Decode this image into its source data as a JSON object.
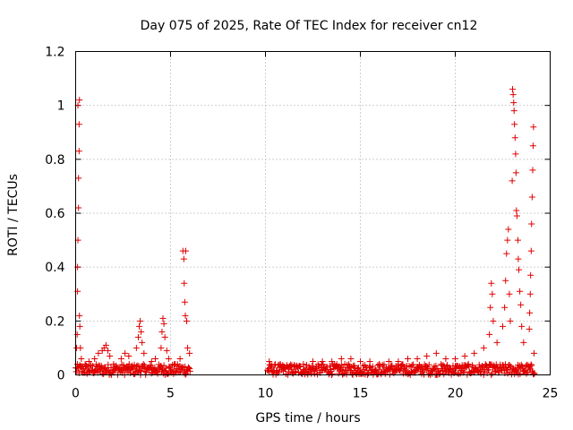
{
  "chart_data": {
    "type": "scatter",
    "title": "Day 075 of 2025, Rate Of TEC Index for receiver cn12",
    "xlabel": "GPS time / hours",
    "ylabel": "ROTI / TECUs",
    "xlim": [
      0,
      25
    ],
    "ylim": [
      0,
      1.2
    ],
    "grid": true,
    "marker": "+",
    "color": "#e00000",
    "xticks": [
      0,
      5,
      10,
      15,
      20,
      25
    ],
    "xtick_labels": [
      "0",
      "5",
      "10",
      "15",
      "20",
      "25"
    ],
    "yticks": [
      0,
      0.2,
      0.4,
      0.6,
      0.8,
      1.0,
      1.2
    ],
    "ytick_labels": [
      "0",
      "0.2",
      "0.4",
      "0.6",
      "0.8",
      "1",
      "1.2"
    ],
    "series": [
      {
        "name": "ROTI",
        "points": [
          [
            0.05,
            0.1
          ],
          [
            0.08,
            0.15
          ],
          [
            0.1,
            0.31
          ],
          [
            0.1,
            0.4
          ],
          [
            0.12,
            0.5
          ],
          [
            0.12,
            1.0
          ],
          [
            0.15,
            0.62
          ],
          [
            0.15,
            0.73
          ],
          [
            0.18,
            0.83
          ],
          [
            0.18,
            0.93
          ],
          [
            0.2,
            1.02
          ],
          [
            0.2,
            0.22
          ],
          [
            0.22,
            0.18
          ],
          [
            0.25,
            0.1
          ],
          [
            0.3,
            0.06
          ],
          [
            0.5,
            0.04
          ],
          [
            0.7,
            0.05
          ],
          [
            1.0,
            0.06
          ],
          [
            1.2,
            0.08
          ],
          [
            1.4,
            0.09
          ],
          [
            1.5,
            0.1
          ],
          [
            1.6,
            0.11
          ],
          [
            1.7,
            0.09
          ],
          [
            1.8,
            0.07
          ],
          [
            2.0,
            0.04
          ],
          [
            2.4,
            0.06
          ],
          [
            2.6,
            0.08
          ],
          [
            2.8,
            0.07
          ],
          [
            3.2,
            0.1
          ],
          [
            3.3,
            0.14
          ],
          [
            3.35,
            0.18
          ],
          [
            3.4,
            0.2
          ],
          [
            3.45,
            0.16
          ],
          [
            3.5,
            0.12
          ],
          [
            3.6,
            0.08
          ],
          [
            4.0,
            0.05
          ],
          [
            4.2,
            0.06
          ],
          [
            4.5,
            0.1
          ],
          [
            4.55,
            0.16
          ],
          [
            4.6,
            0.21
          ],
          [
            4.65,
            0.19
          ],
          [
            4.7,
            0.14
          ],
          [
            4.8,
            0.09
          ],
          [
            4.9,
            0.06
          ],
          [
            5.2,
            0.04
          ],
          [
            5.5,
            0.06
          ],
          [
            5.65,
            0.46
          ],
          [
            5.7,
            0.43
          ],
          [
            5.72,
            0.34
          ],
          [
            5.75,
            0.27
          ],
          [
            5.78,
            0.22
          ],
          [
            5.8,
            0.46
          ],
          [
            5.85,
            0.2
          ],
          [
            5.9,
            0.1
          ],
          [
            6.0,
            0.08
          ],
          [
            10.2,
            0.05
          ],
          [
            10.3,
            0.03
          ],
          [
            11.0,
            0.03
          ],
          [
            11.5,
            0.03
          ],
          [
            12.0,
            0.04
          ],
          [
            12.5,
            0.05
          ],
          [
            13.0,
            0.05
          ],
          [
            13.5,
            0.05
          ],
          [
            14.0,
            0.06
          ],
          [
            14.5,
            0.06
          ],
          [
            15.0,
            0.05
          ],
          [
            15.5,
            0.05
          ],
          [
            16.0,
            0.04
          ],
          [
            16.5,
            0.05
          ],
          [
            17.0,
            0.05
          ],
          [
            17.5,
            0.06
          ],
          [
            18.0,
            0.06
          ],
          [
            18.5,
            0.07
          ],
          [
            19.0,
            0.08
          ],
          [
            19.5,
            0.06
          ],
          [
            20.0,
            0.06
          ],
          [
            20.5,
            0.07
          ],
          [
            21.0,
            0.08
          ],
          [
            21.5,
            0.1
          ],
          [
            21.8,
            0.15
          ],
          [
            21.85,
            0.25
          ],
          [
            21.9,
            0.34
          ],
          [
            21.95,
            0.3
          ],
          [
            22.0,
            0.2
          ],
          [
            22.2,
            0.12
          ],
          [
            22.5,
            0.18
          ],
          [
            22.6,
            0.25
          ],
          [
            22.65,
            0.35
          ],
          [
            22.7,
            0.45
          ],
          [
            22.75,
            0.5
          ],
          [
            22.8,
            0.54
          ],
          [
            22.85,
            0.3
          ],
          [
            22.9,
            0.2
          ],
          [
            23.0,
            0.72
          ],
          [
            23.02,
            1.06
          ],
          [
            23.05,
            1.04
          ],
          [
            23.08,
            1.01
          ],
          [
            23.1,
            0.98
          ],
          [
            23.12,
            0.93
          ],
          [
            23.15,
            0.88
          ],
          [
            23.18,
            0.82
          ],
          [
            23.2,
            0.75
          ],
          [
            23.22,
            0.61
          ],
          [
            23.25,
            0.59
          ],
          [
            23.3,
            0.5
          ],
          [
            23.32,
            0.43
          ],
          [
            23.35,
            0.39
          ],
          [
            23.4,
            0.31
          ],
          [
            23.45,
            0.26
          ],
          [
            23.5,
            0.18
          ],
          [
            23.6,
            0.12
          ],
          [
            23.9,
            0.17
          ],
          [
            23.92,
            0.23
          ],
          [
            23.95,
            0.3
          ],
          [
            23.97,
            0.37
          ],
          [
            24.0,
            0.46
          ],
          [
            24.02,
            0.56
          ],
          [
            24.05,
            0.66
          ],
          [
            24.08,
            0.76
          ],
          [
            24.1,
            0.85
          ],
          [
            24.12,
            0.92
          ],
          [
            24.15,
            0.08
          ]
        ],
        "baseline_segments": [
          {
            "x_range": [
              0.0,
              6.05
            ],
            "value_range": [
              0.0,
              0.04
            ]
          },
          {
            "x_range": [
              10.1,
              24.2
            ],
            "value_range": [
              0.0,
              0.04
            ]
          }
        ]
      }
    ]
  }
}
